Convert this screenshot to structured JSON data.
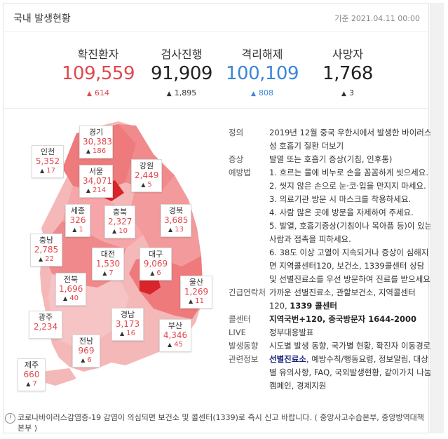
{
  "header": {
    "title": "국내 발생현황",
    "date": "기준 2021.04.11 00:00"
  },
  "stats": [
    {
      "label": "확진환자",
      "value": "109,559",
      "delta": "614",
      "color": "#e0484e"
    },
    {
      "label": "검사진행",
      "value": "91,909",
      "delta": "1,895",
      "color": "#222222"
    },
    {
      "label": "격리해제",
      "value": "100,109",
      "delta": "808",
      "color": "#3b86d9"
    },
    {
      "label": "사망자",
      "value": "1,768",
      "delta": "3",
      "color": "#222222"
    }
  ],
  "regions": {
    "incheon": {
      "name": "인천",
      "value": "5,352",
      "delta": "17"
    },
    "gyeonggi": {
      "name": "경기",
      "value": "30,383",
      "delta": "186"
    },
    "seoul": {
      "name": "서울",
      "value": "34,071",
      "delta": "214"
    },
    "gangwon": {
      "name": "강원",
      "value": "2,449",
      "delta": "5"
    },
    "sejong": {
      "name": "세종",
      "value": "326",
      "delta": "1"
    },
    "chungbuk": {
      "name": "충북",
      "value": "2,327",
      "delta": "10"
    },
    "gyeongbuk": {
      "name": "경북",
      "value": "3,685",
      "delta": "13"
    },
    "chungnam": {
      "name": "충남",
      "value": "2,785",
      "delta": "22"
    },
    "daejeon": {
      "name": "대전",
      "value": "1,530",
      "delta": "7"
    },
    "daegu": {
      "name": "대구",
      "value": "9,069",
      "delta": "6"
    },
    "jeonbuk": {
      "name": "전북",
      "value": "1,696",
      "delta": "40"
    },
    "ulsan": {
      "name": "울산",
      "value": "1,269",
      "delta": "11"
    },
    "gwangju": {
      "name": "광주",
      "value": "2,234",
      "delta": ""
    },
    "gyeongnam": {
      "name": "경남",
      "value": "3,173",
      "delta": "16"
    },
    "busan": {
      "name": "부산",
      "value": "4,346",
      "delta": "45"
    },
    "jeonnam": {
      "name": "전남",
      "value": "969",
      "delta": "6"
    },
    "jeju": {
      "name": "제주",
      "value": "660",
      "delta": "7"
    }
  },
  "info": {
    "definition_key": "정의",
    "definition": "2019년 12월 중국 우한시에서 발생한 바이러스성 호흡기 질환",
    "definition_more": "더보기",
    "symptom_key": "증상",
    "symptom": "발열 또는 호흡기 증상(기침, 인후통)",
    "prevention_key": "예방법",
    "prevention": [
      "1. 흐르는 물에 비누로 손을 꼼꼼하게 씻으세요.",
      "2. 씻지 않은 손으로 눈·코·입을 만지지 마세요.",
      "3. 의료기관 방문 시 마스크를 착용하세요.",
      "4. 사람 많은 곳에 방문을 자제하여 주세요.",
      "5. 발열, 호흡기증상(기침이나 목아픔 등)이 있는 사람과 접촉을 피하세요.",
      "6. 38도 이상 고열이 지속되거나 증상이 심해지면 지역콜센터120, 보건소, 1339콜센터 상담 및 선별진료소를 우선 방문하여 진료를 받으세요."
    ],
    "emergency_key": "긴급연락처",
    "emergency": "가까운 선별진료소, 관할보건소, 지역콜센터 120,",
    "emergency_bold": "1339 콜센터",
    "callcenter_key": "콜센터",
    "callcenter": "지역국번+120, 중국방문자 1644-2000",
    "live_key": "LIVE",
    "live": "정부대응발표",
    "trend_key": "발생동향",
    "trend": "시도별 발생 동향, 국가별 현황, 확진자 이동경로",
    "related_key": "관련정보",
    "related_bold": "선별진료소",
    "related": ", 예방수칙/행동요령, 정보알림, 대상별 유의사항, FAQ, 국외발생현황, 같이가치 나눔캠페인, 경제지원"
  },
  "footer": {
    "icon": "!",
    "text": "코로나바이러스감염증-19 감염이 의심되면 보건소 및 콜센터(1339)로 즉시 신고 바랍니다. ( 중앙사고수습본부, 중앙방역대책본부 )"
  },
  "colors": {
    "accent_red": "#e0484e",
    "accent_blue": "#3b86d9",
    "map_light": "#f5b8b8",
    "map_mid": "#ee7a7c",
    "map_dark": "#d8252b"
  }
}
